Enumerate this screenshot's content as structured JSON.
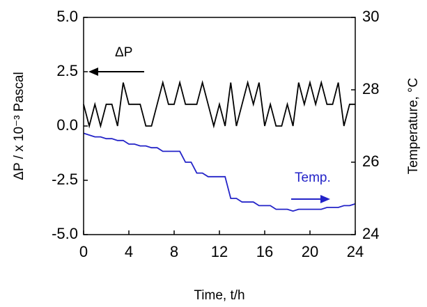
{
  "chart_data": {
    "type": "line",
    "xlabel": "Time, t/h",
    "ylabel": "ΔP / x 10⁻³ Pascal",
    "y2label": "Temperature, °C",
    "xlim": [
      0,
      24
    ],
    "xticks": [
      0,
      4,
      8,
      12,
      16,
      20,
      24
    ],
    "ylim": [
      -5,
      5
    ],
    "yticks": [
      {
        "value": 5,
        "label": "5.0"
      },
      2.5,
      {
        "value": 0,
        "label": "0.0"
      },
      -2.5,
      {
        "value": -5,
        "label": "-5.0"
      }
    ],
    "y2lim": [
      24,
      30
    ],
    "y2ticks": [
      24,
      26,
      28,
      30
    ],
    "annotations": [
      {
        "text": "ΔP",
        "color": "#000000"
      },
      {
        "text": "Temp.",
        "color": "#2323c8"
      }
    ],
    "x": [
      0,
      0.5,
      1,
      1.5,
      2,
      2.5,
      3,
      3.5,
      4,
      4.5,
      5,
      5.5,
      6,
      6.5,
      7,
      7.5,
      8,
      8.5,
      9,
      9.5,
      10,
      10.5,
      11,
      11.5,
      12,
      12.5,
      13,
      13.5,
      14,
      14.5,
      15,
      15.5,
      16,
      16.5,
      17,
      17.5,
      18,
      18.5,
      19,
      19.5,
      20,
      20.5,
      21,
      21.5,
      22,
      22.5,
      23,
      23.5,
      24
    ],
    "series": [
      {
        "name": "ΔP",
        "color": "#000000",
        "axis": "y",
        "values": [
          1,
          0,
          1,
          0,
          1,
          1,
          0,
          2,
          1,
          1,
          1,
          0,
          0,
          1,
          2,
          1,
          1,
          2,
          1,
          1,
          1,
          2,
          1,
          0,
          1,
          0,
          2,
          0,
          1,
          2,
          1,
          2,
          0,
          1,
          0,
          0,
          1,
          0,
          2,
          1,
          2,
          1,
          2,
          1,
          1,
          2,
          0,
          1,
          1
        ]
      },
      {
        "name": "Temp.",
        "color": "#2323c8",
        "axis": "y2",
        "values": [
          26.8,
          26.75,
          26.7,
          26.7,
          26.65,
          26.65,
          26.6,
          26.6,
          26.5,
          26.5,
          26.45,
          26.45,
          26.4,
          26.4,
          26.3,
          26.3,
          26.3,
          26.3,
          26.0,
          26.0,
          25.7,
          25.7,
          25.6,
          25.6,
          25.6,
          25.6,
          25.0,
          25.0,
          24.9,
          24.9,
          24.9,
          24.8,
          24.8,
          24.8,
          24.7,
          24.7,
          24.7,
          24.65,
          24.7,
          24.7,
          24.7,
          24.7,
          24.7,
          24.75,
          24.75,
          24.75,
          24.8,
          24.8,
          24.85
        ]
      }
    ]
  }
}
